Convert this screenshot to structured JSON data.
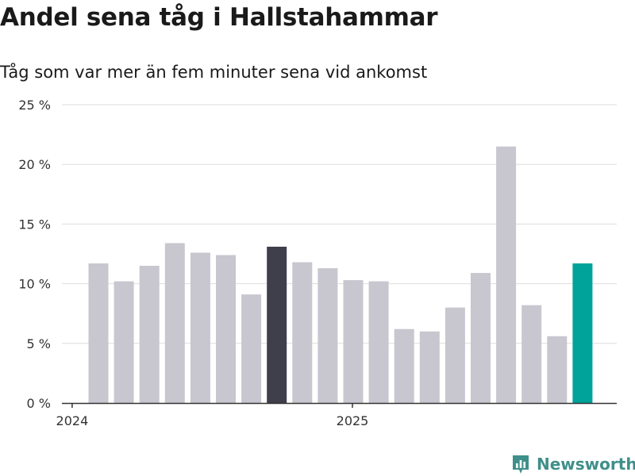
{
  "colors": {
    "bar_default": "#c8c7cf",
    "bar_highlight_dark": "#3f3e4b",
    "bar_highlight_accent": "#00a399",
    "grid": "#dddddd",
    "axis": "#333333",
    "brand": "#3f8f8a"
  },
  "brand": {
    "name": "Newsworthy",
    "icon": "newsworthy-logo-icon"
  },
  "chart_data": {
    "type": "bar",
    "title": "Andel sena tåg i Hallstahammar",
    "subtitle": "Tåg som var mer än fem minuter sena vid ankomst",
    "xlabel": "",
    "ylabel": "",
    "ylim": [
      0,
      25
    ],
    "yticks": [
      0,
      5,
      10,
      15,
      20,
      25
    ],
    "ytick_labels": [
      "0 %",
      "5 %",
      "10 %",
      "15 %",
      "20 %",
      "25 %"
    ],
    "xtick_labels": [
      {
        "label": "2024",
        "category": "2024-01"
      },
      {
        "label": "2025",
        "category": "2025-01"
      }
    ],
    "grid": true,
    "categories": [
      "2024-01",
      "2024-02",
      "2024-03",
      "2024-04",
      "2024-05",
      "2024-06",
      "2024-08",
      "2024-09",
      "2024-10",
      "2024-11",
      "2024-12",
      "2025-01",
      "2025-02",
      "2025-03",
      "2025-04",
      "2025-05",
      "2025-06",
      "2025-07",
      "2025-08",
      "2025-09"
    ],
    "values": [
      11.7,
      10.2,
      11.5,
      13.4,
      12.6,
      12.4,
      9.1,
      13.1,
      11.8,
      11.3,
      10.3,
      10.2,
      6.2,
      6.0,
      8.0,
      10.9,
      21.5,
      8.2,
      5.6,
      11.7
    ],
    "highlight": [
      {
        "index": 7,
        "color_key": "bar_highlight_dark"
      },
      {
        "index": 19,
        "color_key": "bar_highlight_accent"
      }
    ]
  }
}
